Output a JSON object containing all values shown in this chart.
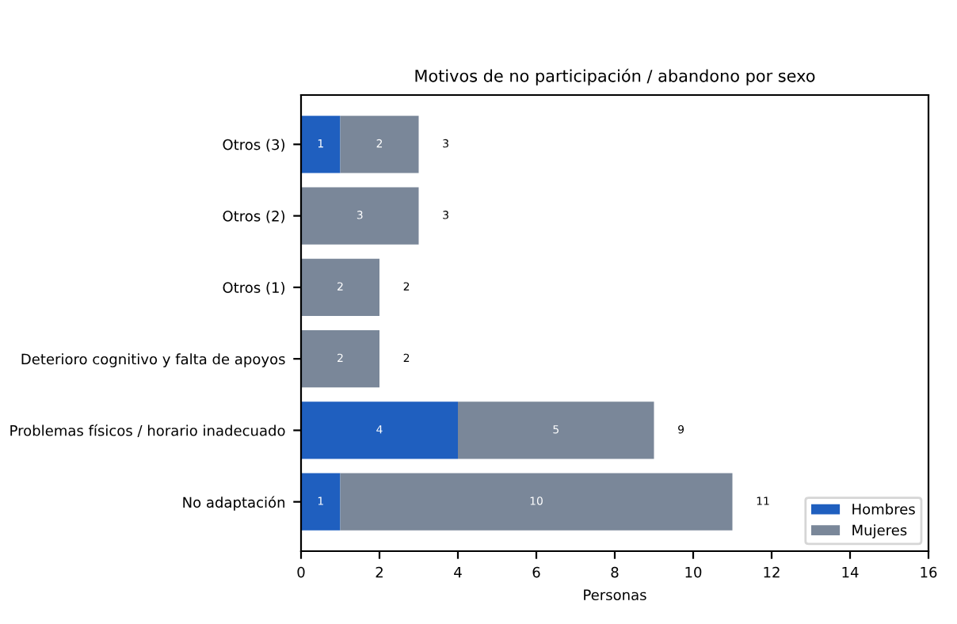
{
  "chart_data": {
    "type": "bar",
    "orientation": "horizontal",
    "stacked": true,
    "title": "Motivos de no participación / abandono por sexo",
    "xlabel": "Personas",
    "categories": [
      "Otros (3)",
      "Otros (2)",
      "Otros (1)",
      "Deterioro cognitivo y falta de apoyos",
      "Problemas físicos / horario inadecuado",
      "No adaptación"
    ],
    "series": [
      {
        "name": "Hombres",
        "color": "#1f5fbf",
        "values": [
          1,
          0,
          0,
          0,
          4,
          1
        ],
        "value_labels": [
          "1",
          null,
          null,
          null,
          "4",
          "1"
        ]
      },
      {
        "name": "Mujeres",
        "color": "#7a8799",
        "values": [
          2,
          3,
          2,
          2,
          5,
          10
        ],
        "value_labels": [
          "2",
          "3",
          "2",
          "2",
          "5",
          "10"
        ]
      }
    ],
    "totals": [
      "3",
      "3",
      "2",
      "2",
      "9",
      "11"
    ],
    "xlim": [
      0,
      16
    ],
    "xticks": [
      0,
      2,
      4,
      6,
      8,
      10,
      12,
      14,
      16
    ],
    "legend": "lower right",
    "grid": false
  }
}
